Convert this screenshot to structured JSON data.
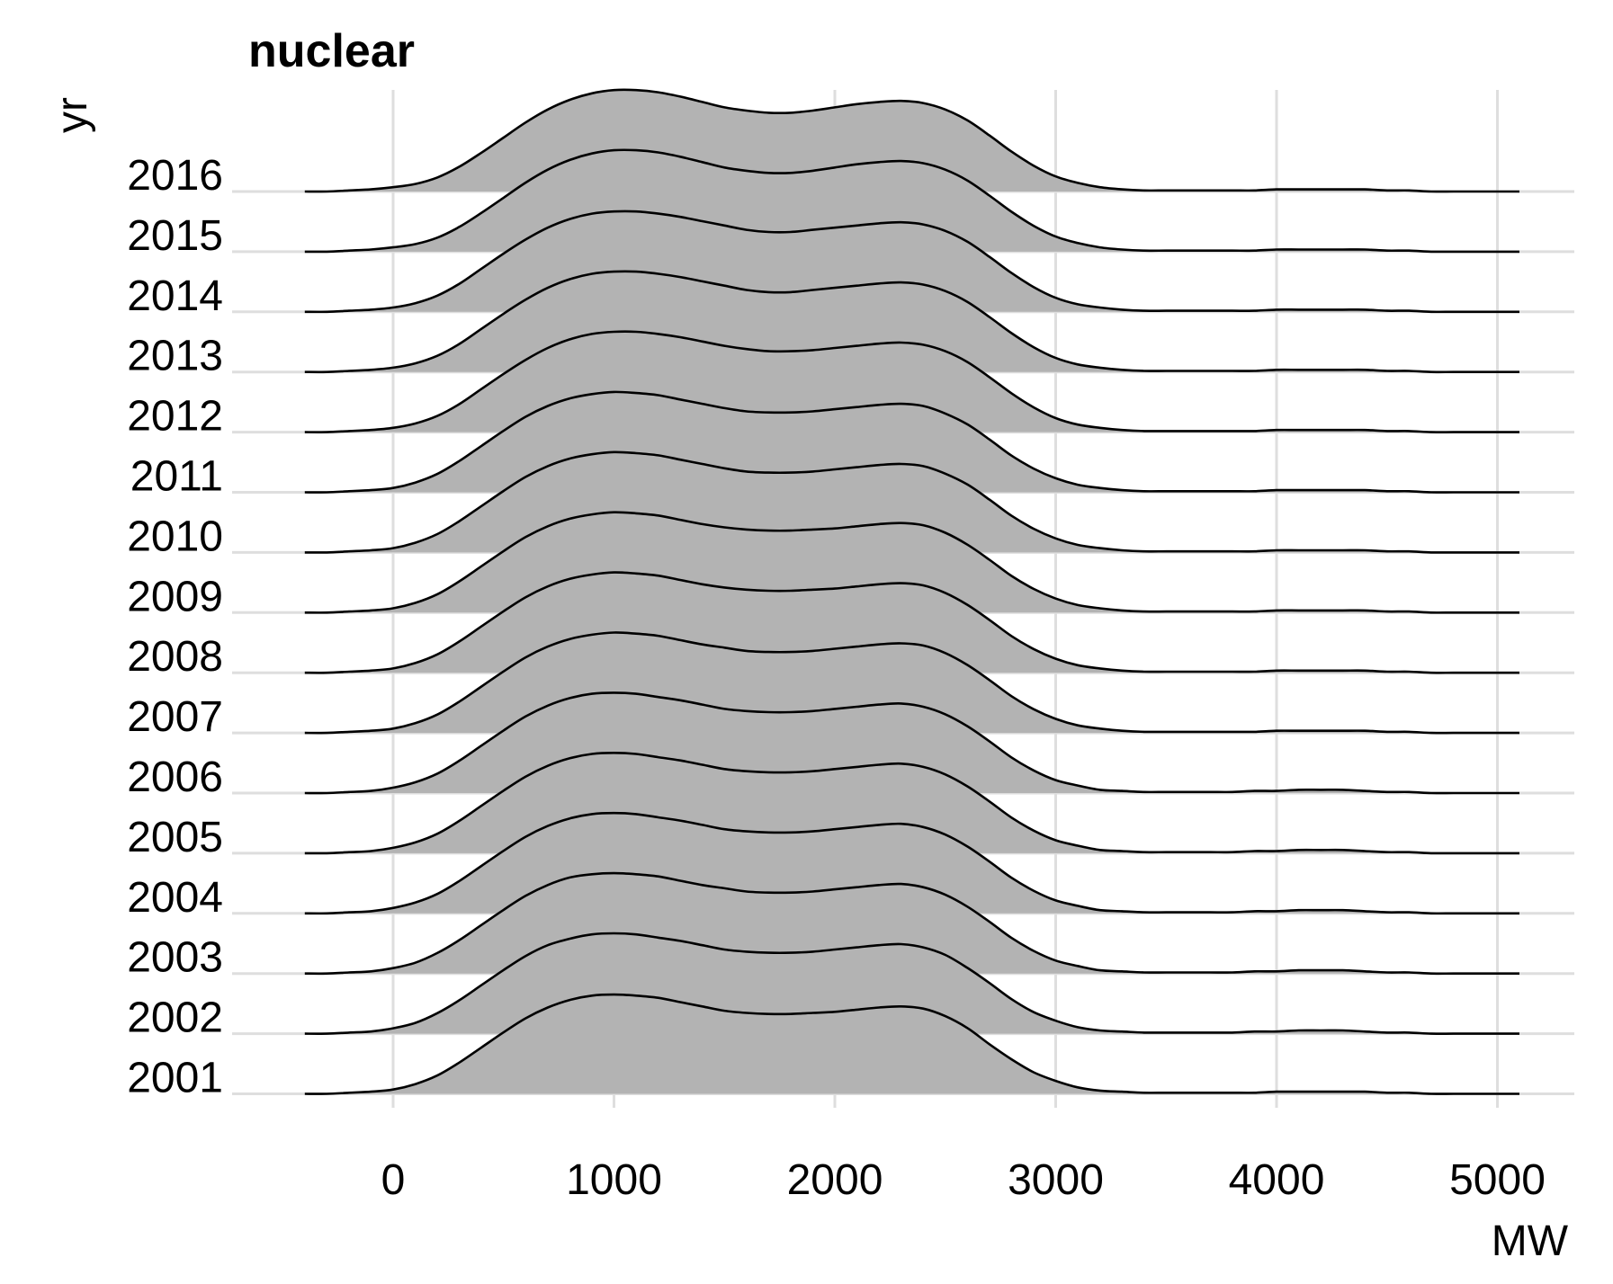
{
  "chart_data": {
    "type": "ridgeline",
    "title": "nuclear",
    "xlabel": "MW",
    "ylabel": "yr",
    "xlim": [
      -400,
      5100
    ],
    "x_ticks": [
      0,
      1000,
      2000,
      3000,
      4000,
      5000
    ],
    "x_tick_labels": [
      "0",
      "1000",
      "2000",
      "3000",
      "4000",
      "5000"
    ],
    "grid": true,
    "fill_color": "#b3b3b3",
    "line_color": "#000000",
    "grid_color": "#dedede",
    "x": [
      -400,
      -300,
      -200,
      -100,
      0,
      100,
      200,
      300,
      400,
      500,
      600,
      700,
      800,
      900,
      1000,
      1100,
      1200,
      1300,
      1400,
      1500,
      1600,
      1700,
      1800,
      1900,
      2000,
      2100,
      2200,
      2300,
      2400,
      2500,
      2600,
      2700,
      2800,
      2900,
      3000,
      3100,
      3200,
      3300,
      3400,
      3500,
      3600,
      3700,
      3800,
      3900,
      4000,
      4100,
      4200,
      4300,
      4400,
      4500,
      4600,
      4700,
      4800,
      4900,
      5000,
      5100
    ],
    "series": [
      {
        "name": "2001",
        "peak_scale": 0.86,
        "values": [
          0.0,
          0.0,
          0.01,
          0.02,
          0.04,
          0.09,
          0.17,
          0.29,
          0.43,
          0.57,
          0.7,
          0.8,
          0.87,
          0.91,
          0.92,
          0.91,
          0.89,
          0.85,
          0.81,
          0.77,
          0.75,
          0.74,
          0.74,
          0.75,
          0.76,
          0.78,
          0.8,
          0.81,
          0.79,
          0.72,
          0.61,
          0.46,
          0.32,
          0.2,
          0.12,
          0.06,
          0.03,
          0.02,
          0.01,
          0.01,
          0.01,
          0.01,
          0.01,
          0.01,
          0.02,
          0.02,
          0.02,
          0.02,
          0.02,
          0.01,
          0.01,
          0.0,
          0.0,
          0.0,
          0.0,
          0.0
        ]
      },
      {
        "name": "2002",
        "peak_scale": 0.86,
        "values": [
          0.0,
          0.0,
          0.01,
          0.02,
          0.05,
          0.1,
          0.19,
          0.31,
          0.45,
          0.59,
          0.72,
          0.82,
          0.88,
          0.92,
          0.93,
          0.92,
          0.89,
          0.86,
          0.82,
          0.78,
          0.76,
          0.75,
          0.75,
          0.76,
          0.78,
          0.8,
          0.82,
          0.83,
          0.8,
          0.73,
          0.61,
          0.47,
          0.32,
          0.2,
          0.12,
          0.06,
          0.03,
          0.02,
          0.01,
          0.01,
          0.01,
          0.01,
          0.01,
          0.02,
          0.02,
          0.03,
          0.03,
          0.03,
          0.02,
          0.01,
          0.01,
          0.0,
          0.0,
          0.0,
          0.0,
          0.0
        ]
      },
      {
        "name": "2003",
        "peak_scale": 0.86,
        "values": [
          0.0,
          0.0,
          0.01,
          0.02,
          0.05,
          0.1,
          0.19,
          0.31,
          0.45,
          0.59,
          0.72,
          0.82,
          0.89,
          0.92,
          0.93,
          0.92,
          0.9,
          0.86,
          0.82,
          0.79,
          0.76,
          0.75,
          0.75,
          0.76,
          0.78,
          0.8,
          0.82,
          0.83,
          0.8,
          0.73,
          0.62,
          0.48,
          0.33,
          0.21,
          0.12,
          0.07,
          0.03,
          0.02,
          0.01,
          0.01,
          0.01,
          0.01,
          0.01,
          0.02,
          0.02,
          0.03,
          0.03,
          0.03,
          0.02,
          0.01,
          0.01,
          0.0,
          0.0,
          0.0,
          0.0,
          0.0
        ]
      },
      {
        "name": "2004",
        "peak_scale": 0.86,
        "values": [
          0.0,
          0.0,
          0.01,
          0.02,
          0.05,
          0.1,
          0.18,
          0.3,
          0.44,
          0.58,
          0.71,
          0.81,
          0.88,
          0.92,
          0.93,
          0.92,
          0.89,
          0.86,
          0.82,
          0.78,
          0.76,
          0.75,
          0.75,
          0.76,
          0.78,
          0.8,
          0.82,
          0.83,
          0.8,
          0.73,
          0.62,
          0.48,
          0.33,
          0.21,
          0.12,
          0.07,
          0.03,
          0.02,
          0.01,
          0.01,
          0.01,
          0.01,
          0.01,
          0.02,
          0.02,
          0.03,
          0.03,
          0.03,
          0.02,
          0.01,
          0.01,
          0.0,
          0.0,
          0.0,
          0.0,
          0.0
        ]
      },
      {
        "name": "2005",
        "peak_scale": 0.86,
        "values": [
          0.0,
          0.0,
          0.01,
          0.02,
          0.05,
          0.1,
          0.18,
          0.3,
          0.44,
          0.58,
          0.71,
          0.81,
          0.88,
          0.92,
          0.93,
          0.92,
          0.89,
          0.86,
          0.82,
          0.78,
          0.76,
          0.75,
          0.75,
          0.76,
          0.78,
          0.8,
          0.82,
          0.83,
          0.8,
          0.73,
          0.62,
          0.48,
          0.33,
          0.21,
          0.12,
          0.07,
          0.03,
          0.02,
          0.01,
          0.01,
          0.01,
          0.01,
          0.01,
          0.02,
          0.02,
          0.03,
          0.03,
          0.03,
          0.02,
          0.01,
          0.01,
          0.0,
          0.0,
          0.0,
          0.0,
          0.0
        ]
      },
      {
        "name": "2006",
        "peak_scale": 0.86,
        "values": [
          0.0,
          0.0,
          0.01,
          0.02,
          0.05,
          0.1,
          0.18,
          0.3,
          0.44,
          0.58,
          0.71,
          0.81,
          0.88,
          0.92,
          0.93,
          0.92,
          0.89,
          0.86,
          0.82,
          0.78,
          0.76,
          0.75,
          0.75,
          0.76,
          0.78,
          0.8,
          0.82,
          0.83,
          0.8,
          0.73,
          0.62,
          0.48,
          0.33,
          0.21,
          0.12,
          0.07,
          0.03,
          0.02,
          0.01,
          0.01,
          0.01,
          0.01,
          0.01,
          0.02,
          0.02,
          0.03,
          0.03,
          0.03,
          0.02,
          0.01,
          0.01,
          0.0,
          0.0,
          0.0,
          0.0,
          0.0
        ]
      },
      {
        "name": "2007",
        "peak_scale": 0.86,
        "values": [
          0.0,
          0.0,
          0.01,
          0.02,
          0.04,
          0.09,
          0.17,
          0.29,
          0.43,
          0.57,
          0.7,
          0.8,
          0.87,
          0.91,
          0.93,
          0.92,
          0.9,
          0.86,
          0.82,
          0.79,
          0.76,
          0.75,
          0.75,
          0.76,
          0.78,
          0.8,
          0.82,
          0.83,
          0.81,
          0.74,
          0.63,
          0.49,
          0.34,
          0.22,
          0.13,
          0.07,
          0.04,
          0.02,
          0.01,
          0.01,
          0.01,
          0.01,
          0.01,
          0.01,
          0.02,
          0.02,
          0.02,
          0.02,
          0.02,
          0.01,
          0.01,
          0.0,
          0.0,
          0.0,
          0.0,
          0.0
        ]
      },
      {
        "name": "2008",
        "peak_scale": 0.86,
        "values": [
          0.0,
          0.0,
          0.01,
          0.02,
          0.04,
          0.09,
          0.17,
          0.29,
          0.43,
          0.57,
          0.7,
          0.8,
          0.87,
          0.91,
          0.93,
          0.92,
          0.9,
          0.86,
          0.82,
          0.79,
          0.77,
          0.76,
          0.76,
          0.77,
          0.78,
          0.8,
          0.82,
          0.83,
          0.81,
          0.74,
          0.63,
          0.49,
          0.34,
          0.22,
          0.13,
          0.07,
          0.04,
          0.02,
          0.01,
          0.01,
          0.01,
          0.01,
          0.01,
          0.01,
          0.02,
          0.02,
          0.02,
          0.02,
          0.02,
          0.01,
          0.01,
          0.0,
          0.0,
          0.0,
          0.0,
          0.0
        ]
      },
      {
        "name": "2009",
        "peak_scale": 0.86,
        "values": [
          0.0,
          0.0,
          0.01,
          0.02,
          0.04,
          0.09,
          0.17,
          0.29,
          0.43,
          0.57,
          0.7,
          0.8,
          0.87,
          0.91,
          0.93,
          0.92,
          0.9,
          0.86,
          0.82,
          0.79,
          0.77,
          0.76,
          0.76,
          0.77,
          0.78,
          0.8,
          0.82,
          0.83,
          0.81,
          0.74,
          0.63,
          0.49,
          0.34,
          0.22,
          0.13,
          0.07,
          0.04,
          0.02,
          0.01,
          0.01,
          0.01,
          0.01,
          0.01,
          0.01,
          0.02,
          0.02,
          0.02,
          0.02,
          0.02,
          0.01,
          0.01,
          0.0,
          0.0,
          0.0,
          0.0,
          0.0
        ]
      },
      {
        "name": "2010",
        "peak_scale": 0.86,
        "values": [
          0.0,
          0.0,
          0.01,
          0.02,
          0.04,
          0.09,
          0.17,
          0.29,
          0.43,
          0.57,
          0.7,
          0.8,
          0.87,
          0.91,
          0.93,
          0.92,
          0.9,
          0.86,
          0.82,
          0.78,
          0.75,
          0.74,
          0.74,
          0.75,
          0.77,
          0.79,
          0.81,
          0.82,
          0.8,
          0.73,
          0.63,
          0.49,
          0.34,
          0.22,
          0.13,
          0.07,
          0.04,
          0.02,
          0.01,
          0.01,
          0.01,
          0.01,
          0.01,
          0.01,
          0.02,
          0.02,
          0.02,
          0.02,
          0.02,
          0.01,
          0.01,
          0.0,
          0.0,
          0.0,
          0.0,
          0.0
        ]
      },
      {
        "name": "2011",
        "peak_scale": 0.86,
        "values": [
          0.0,
          0.0,
          0.01,
          0.02,
          0.04,
          0.09,
          0.17,
          0.29,
          0.43,
          0.57,
          0.7,
          0.8,
          0.87,
          0.91,
          0.93,
          0.92,
          0.9,
          0.86,
          0.82,
          0.78,
          0.75,
          0.74,
          0.74,
          0.75,
          0.77,
          0.79,
          0.81,
          0.82,
          0.8,
          0.73,
          0.63,
          0.49,
          0.34,
          0.22,
          0.13,
          0.07,
          0.04,
          0.02,
          0.01,
          0.01,
          0.01,
          0.01,
          0.01,
          0.01,
          0.02,
          0.02,
          0.02,
          0.02,
          0.02,
          0.01,
          0.01,
          0.0,
          0.0,
          0.0,
          0.0,
          0.0
        ]
      },
      {
        "name": "2012",
        "peak_scale": 0.86,
        "values": [
          0.0,
          0.0,
          0.01,
          0.02,
          0.04,
          0.08,
          0.15,
          0.26,
          0.4,
          0.54,
          0.67,
          0.78,
          0.86,
          0.91,
          0.93,
          0.93,
          0.91,
          0.88,
          0.84,
          0.8,
          0.77,
          0.75,
          0.75,
          0.76,
          0.78,
          0.8,
          0.82,
          0.83,
          0.81,
          0.75,
          0.65,
          0.51,
          0.36,
          0.23,
          0.13,
          0.07,
          0.04,
          0.02,
          0.01,
          0.01,
          0.01,
          0.01,
          0.01,
          0.01,
          0.02,
          0.02,
          0.02,
          0.02,
          0.02,
          0.01,
          0.01,
          0.0,
          0.0,
          0.0,
          0.0,
          0.0
        ]
      },
      {
        "name": "2013",
        "peak_scale": 0.86,
        "values": [
          0.0,
          0.0,
          0.01,
          0.02,
          0.04,
          0.08,
          0.15,
          0.26,
          0.4,
          0.54,
          0.67,
          0.78,
          0.86,
          0.91,
          0.93,
          0.93,
          0.91,
          0.88,
          0.84,
          0.8,
          0.76,
          0.74,
          0.74,
          0.76,
          0.78,
          0.8,
          0.82,
          0.83,
          0.81,
          0.75,
          0.65,
          0.51,
          0.36,
          0.23,
          0.13,
          0.07,
          0.04,
          0.02,
          0.01,
          0.01,
          0.01,
          0.01,
          0.01,
          0.01,
          0.02,
          0.02,
          0.02,
          0.02,
          0.02,
          0.01,
          0.01,
          0.0,
          0.0,
          0.0,
          0.0,
          0.0
        ]
      },
      {
        "name": "2014",
        "peak_scale": 0.86,
        "values": [
          0.0,
          0.0,
          0.01,
          0.02,
          0.04,
          0.08,
          0.15,
          0.26,
          0.4,
          0.54,
          0.67,
          0.78,
          0.86,
          0.91,
          0.93,
          0.93,
          0.91,
          0.88,
          0.84,
          0.8,
          0.76,
          0.74,
          0.74,
          0.76,
          0.78,
          0.8,
          0.82,
          0.83,
          0.81,
          0.75,
          0.65,
          0.51,
          0.36,
          0.23,
          0.13,
          0.07,
          0.04,
          0.02,
          0.01,
          0.01,
          0.01,
          0.01,
          0.01,
          0.01,
          0.02,
          0.02,
          0.02,
          0.02,
          0.02,
          0.01,
          0.01,
          0.0,
          0.0,
          0.0,
          0.0,
          0.0
        ]
      },
      {
        "name": "2015",
        "peak_scale": 0.86,
        "values": [
          0.0,
          0.0,
          0.01,
          0.02,
          0.04,
          0.07,
          0.13,
          0.23,
          0.36,
          0.5,
          0.64,
          0.76,
          0.85,
          0.91,
          0.94,
          0.94,
          0.92,
          0.88,
          0.83,
          0.78,
          0.75,
          0.73,
          0.73,
          0.75,
          0.78,
          0.81,
          0.83,
          0.84,
          0.82,
          0.76,
          0.66,
          0.52,
          0.37,
          0.24,
          0.14,
          0.08,
          0.04,
          0.02,
          0.01,
          0.01,
          0.01,
          0.01,
          0.01,
          0.01,
          0.02,
          0.02,
          0.02,
          0.02,
          0.02,
          0.01,
          0.01,
          0.0,
          0.0,
          0.0,
          0.0,
          0.0
        ]
      },
      {
        "name": "2016",
        "peak_scale": 0.86,
        "values": [
          0.0,
          0.0,
          0.01,
          0.02,
          0.04,
          0.07,
          0.13,
          0.23,
          0.36,
          0.5,
          0.64,
          0.76,
          0.85,
          0.91,
          0.94,
          0.94,
          0.92,
          0.88,
          0.83,
          0.78,
          0.75,
          0.73,
          0.73,
          0.75,
          0.78,
          0.81,
          0.83,
          0.84,
          0.82,
          0.76,
          0.66,
          0.52,
          0.37,
          0.24,
          0.14,
          0.08,
          0.04,
          0.02,
          0.01,
          0.01,
          0.01,
          0.01,
          0.01,
          0.01,
          0.02,
          0.02,
          0.02,
          0.02,
          0.02,
          0.01,
          0.01,
          0.0,
          0.0,
          0.0,
          0.0,
          0.0
        ]
      }
    ]
  }
}
